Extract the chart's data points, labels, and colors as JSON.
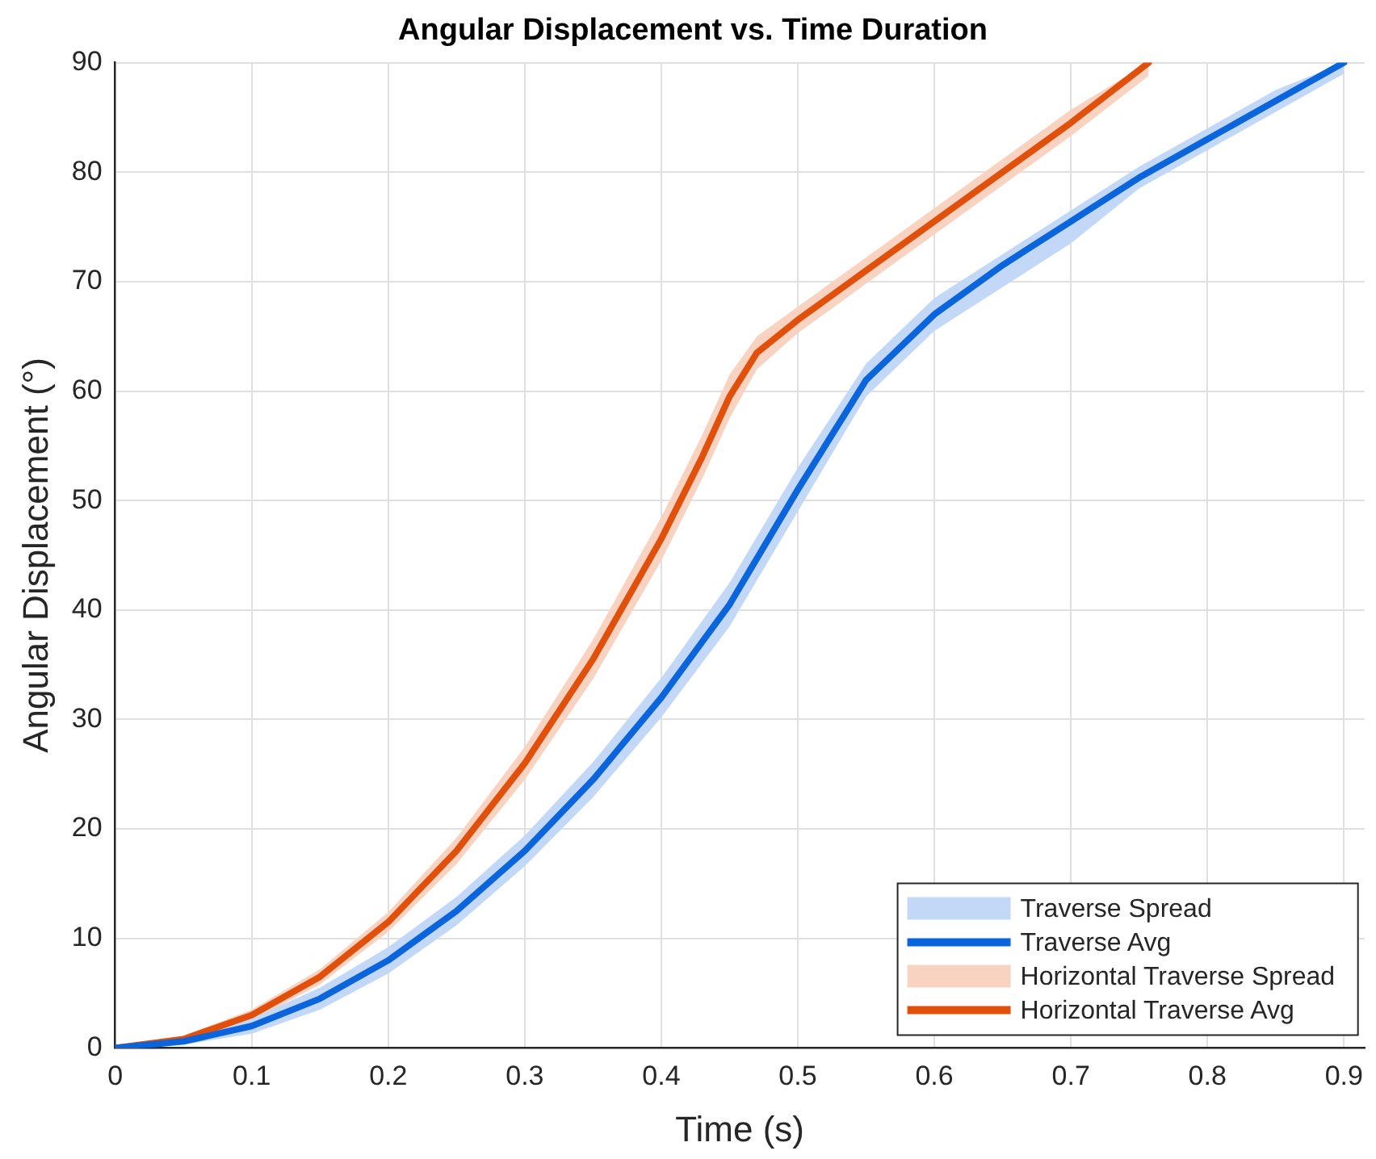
{
  "chart_data": {
    "type": "line",
    "title": "Angular Displacement vs. Time Duration",
    "xlabel": "Time (s)",
    "ylabel": "Angular Displacement (°)",
    "xlim": [
      0,
      0.915
    ],
    "xticks": [
      0,
      0.1,
      0.2,
      0.3,
      0.4,
      0.5,
      0.6,
      0.7,
      0.8,
      0.9
    ],
    "ylim": [
      0,
      90
    ],
    "yticks": [
      0,
      10,
      20,
      30,
      40,
      50,
      60,
      70,
      80,
      90
    ],
    "grid": true,
    "legend": "bottom right",
    "line_style": "solid",
    "marker": "none",
    "annotations": [
      "Traverse Spread",
      "Horizontal Traverse Spread"
    ],
    "series": [
      {
        "name": "Traverse Avg",
        "type": "line",
        "color": "#0a64dc",
        "x": [
          0,
          0.05,
          0.1,
          0.15,
          0.2,
          0.25,
          0.3,
          0.35,
          0.4,
          0.45,
          0.5,
          0.55,
          0.6,
          0.65,
          0.7,
          0.75,
          0.8,
          0.85,
          0.9
        ],
        "values": [
          0,
          0.6,
          2,
          4.5,
          8,
          12.5,
          18,
          24.5,
          32,
          40.5,
          51,
          61,
          67,
          71.5,
          75.5,
          79.5,
          83,
          86.5,
          90
        ],
        "lower": [
          0,
          0.3,
          1.3,
          3.5,
          6.8,
          11.2,
          16.6,
          22.9,
          30.2,
          38.5,
          49,
          59.5,
          65.5,
          69.5,
          73.5,
          78.5,
          82,
          85.5,
          89
        ],
        "upper": [
          0,
          0.9,
          2.7,
          5.5,
          9.2,
          13.8,
          19.4,
          26.1,
          33.8,
          42.5,
          53,
          62.5,
          68.5,
          72.5,
          76.5,
          80.5,
          84,
          87.5,
          90
        ]
      },
      {
        "name": "Horizontal Traverse Avg",
        "type": "line",
        "color": "#e1500a",
        "x": [
          0,
          0.05,
          0.1,
          0.15,
          0.2,
          0.25,
          0.3,
          0.35,
          0.4,
          0.43,
          0.45,
          0.47,
          0.5,
          0.55,
          0.6,
          0.65,
          0.7,
          0.757
        ],
        "values": [
          0,
          0.8,
          3,
          6.5,
          11.5,
          18,
          26,
          35.5,
          46.5,
          54,
          59.5,
          63.5,
          66.5,
          71,
          75.5,
          80,
          84.5,
          90
        ],
        "lower": [
          0,
          0.5,
          2.5,
          5.8,
          10.6,
          16.8,
          24.5,
          33.7,
          44.5,
          52,
          57.5,
          62,
          65.3,
          69.8,
          74.3,
          78.8,
          83.3,
          88.8
        ],
        "upper": [
          0,
          1.1,
          3.5,
          7.2,
          12.4,
          19.2,
          27.5,
          37.3,
          48.5,
          56,
          61.5,
          65,
          67.7,
          72.2,
          76.7,
          81.2,
          85.7,
          90
        ]
      }
    ]
  }
}
